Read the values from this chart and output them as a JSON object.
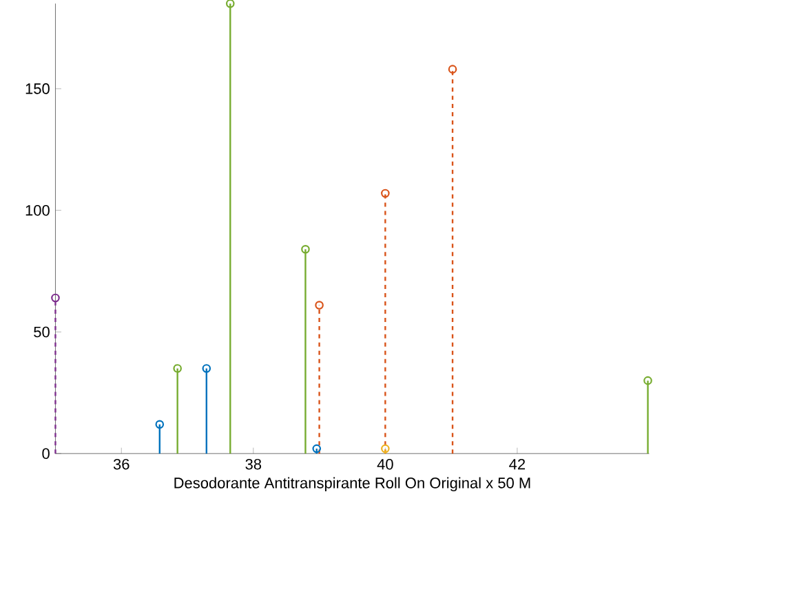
{
  "chart_data": {
    "type": "lollipop",
    "xlabel": "Desodorante Antitranspirante Roll On Original x 50 M",
    "xlim": [
      35,
      44
    ],
    "xticks": [
      36,
      38,
      40,
      42
    ],
    "ylim": [
      0,
      185
    ],
    "yticks": [
      0,
      50,
      100,
      150
    ],
    "marker": "circle",
    "series": [
      {
        "color": "#7e2f8e",
        "line_style": "dashed",
        "x": [
          35.0
        ],
        "values": [
          64
        ]
      },
      {
        "color": "#0072bd",
        "line_style": "solid",
        "x": [
          36.58,
          37.29,
          38.96
        ],
        "values": [
          12,
          35,
          2
        ]
      },
      {
        "color": "#77ac30",
        "line_style": "solid",
        "x": [
          36.85,
          37.65,
          38.79,
          43.98
        ],
        "values": [
          35,
          185,
          84,
          30
        ]
      },
      {
        "color": "#d95319",
        "line_style": "dashed",
        "x": [
          39.0,
          40.0,
          41.02
        ],
        "values": [
          61,
          107,
          158
        ]
      },
      {
        "color": "#edb120",
        "line_style": "dashed",
        "x": [
          40.0
        ],
        "values": [
          2
        ]
      }
    ]
  }
}
